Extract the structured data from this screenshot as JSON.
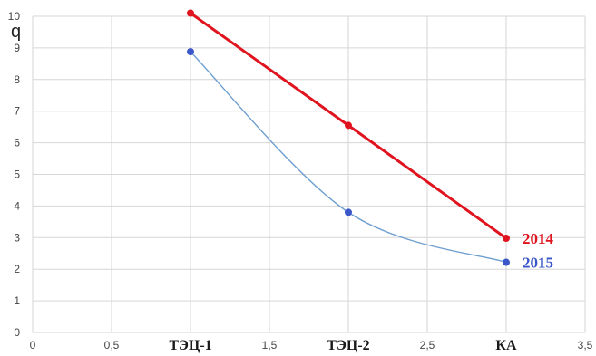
{
  "chart_data": {
    "type": "line",
    "ylabel": "q",
    "xlim": [
      0,
      3.5
    ],
    "ylim": [
      0,
      10
    ],
    "grid": true,
    "x_ticks": [
      "0",
      "0,5",
      "1",
      "1,5",
      "2",
      "2,5",
      "3",
      "3,5"
    ],
    "y_ticks": [
      "0",
      "1",
      "2",
      "3",
      "4",
      "5",
      "6",
      "7",
      "8",
      "9",
      "10"
    ],
    "category_labels": [
      {
        "x": 1,
        "text": "ТЭЦ-1"
      },
      {
        "x": 2,
        "text": "ТЭЦ-2"
      },
      {
        "x": 3,
        "text": "КА"
      }
    ],
    "series": [
      {
        "name": "2014",
        "color": "#e0141e",
        "smooth": false,
        "x": [
          1,
          2,
          3
        ],
        "y": [
          10.1,
          6.55,
          2.98
        ]
      },
      {
        "name": "2015",
        "color": "#3a56c8",
        "line_color": "#6f9fd0",
        "smooth": true,
        "x": [
          1,
          2,
          3
        ],
        "y": [
          8.88,
          3.8,
          2.22
        ]
      }
    ]
  }
}
